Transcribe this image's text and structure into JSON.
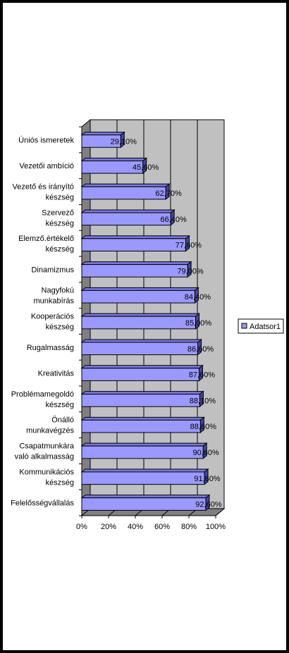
{
  "chart_data": {
    "type": "bar",
    "orientation": "horizontal",
    "three_d": true,
    "categories": [
      "Uniós ismeretek",
      "Vezetői ambíció",
      "Vezető és irányító készség",
      "Szervező készség",
      "Elemző.értékelő készség",
      "Dinamizmus",
      "Nagyfokú munkabírás",
      "Kooperációs készség",
      "Rugalmasság",
      "Kreativitás",
      "Problémamegoldó készség",
      "Önálló munkavégzés",
      "Csapatmunkára való alkalmasság",
      "Kommunikációs készség",
      "Felelősségvállalás"
    ],
    "category_lines": [
      [
        "Úniós ismeretek"
      ],
      [
        "Vezetői ambíció"
      ],
      [
        "Vezető és irányító",
        "készség"
      ],
      [
        "Szervező",
        "készség"
      ],
      [
        "Elemző.értékelő",
        "készség"
      ],
      [
        "Dinamizmus"
      ],
      [
        "Nagyfokú",
        "munkabírás"
      ],
      [
        "Kooperációs",
        "készség"
      ],
      [
        "Rugalmasság"
      ],
      [
        "Kreativitás"
      ],
      [
        "Problémamegoldó",
        "készség"
      ],
      [
        "Önálló",
        "munkavégzés"
      ],
      [
        "Csapatmunkára",
        "való alkalmasság"
      ],
      [
        "Kommunikációs",
        "készség"
      ],
      [
        "Felelősségvállalás"
      ]
    ],
    "series": [
      {
        "name": "Adatsor1",
        "values": [
          0.291,
          0.456,
          0.627,
          0.664,
          0.776,
          0.79,
          0.844,
          0.85,
          0.866,
          0.876,
          0.881,
          0.886,
          0.906,
          0.916,
          0.926
        ],
        "labels": [
          "29,10%",
          "45,60%",
          "62,70%",
          "66,40%",
          "77,60%",
          "79,00%",
          "84,40%",
          "85,00%",
          "86,60%",
          "87,60%",
          "88,10%",
          "88,60%",
          "90,60%",
          "91,60%",
          "92,60%"
        ]
      }
    ],
    "xlim": [
      0,
      1
    ],
    "x_ticks": [
      "0%",
      "20%",
      "40%",
      "60%",
      "80%",
      "100%"
    ],
    "grid": true,
    "legend_position": "right",
    "colors": {
      "bar_front": "#9999FF",
      "bar_top": "#7777DD",
      "bar_side": "#4444AA",
      "wall": "#C0C0C0",
      "floor": "#808080",
      "outline": "#000000",
      "frame": "#000000"
    }
  }
}
